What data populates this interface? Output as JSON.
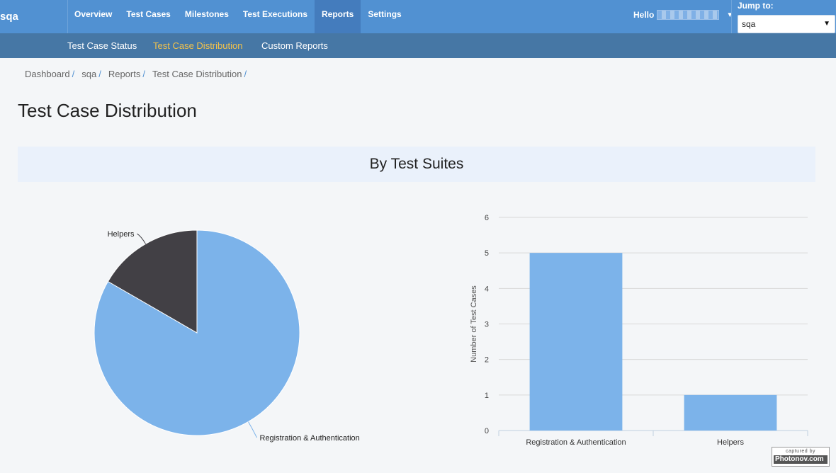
{
  "topbar": {
    "logo": "sqa",
    "nav": [
      {
        "label": "Overview",
        "active": false
      },
      {
        "label": "Test Cases",
        "active": false
      },
      {
        "label": "Milestones",
        "active": false
      },
      {
        "label": "Test Executions",
        "active": false
      },
      {
        "label": "Reports",
        "active": true
      },
      {
        "label": "Settings",
        "active": false
      }
    ],
    "greeting": "Hello",
    "jump_label": "Jump to:",
    "jump_value": "sqa"
  },
  "subnav": {
    "items": [
      {
        "label": "Test Case Status",
        "active": false
      },
      {
        "label": "Test Case Distribution",
        "active": true
      },
      {
        "label": "Custom Reports",
        "active": false
      }
    ]
  },
  "breadcrumb": [
    "Dashboard",
    "sqa",
    "Reports",
    "Test Case Distribution"
  ],
  "breadcrumb_separator": "/",
  "page_title": "Test Case Distribution",
  "section_title": "By Test Suites",
  "chart_data": [
    {
      "type": "pie",
      "title": "",
      "categories": [
        "Registration & Authentication",
        "Helpers"
      ],
      "values": [
        5,
        1
      ],
      "colors": [
        "#7cb3ea",
        "#424045"
      ]
    },
    {
      "type": "bar",
      "title": "",
      "categories": [
        "Registration & Authentication",
        "Helpers"
      ],
      "values": [
        5,
        1
      ],
      "xlabel": "",
      "ylabel": "Number of Test Cases",
      "ylim": [
        0,
        6
      ],
      "yticks": [
        0,
        1,
        2,
        3,
        4,
        5,
        6
      ],
      "grid": true,
      "color": "#7cb3ea"
    }
  ],
  "watermark": {
    "line1": "captured by",
    "line2": "Photonov.com"
  }
}
